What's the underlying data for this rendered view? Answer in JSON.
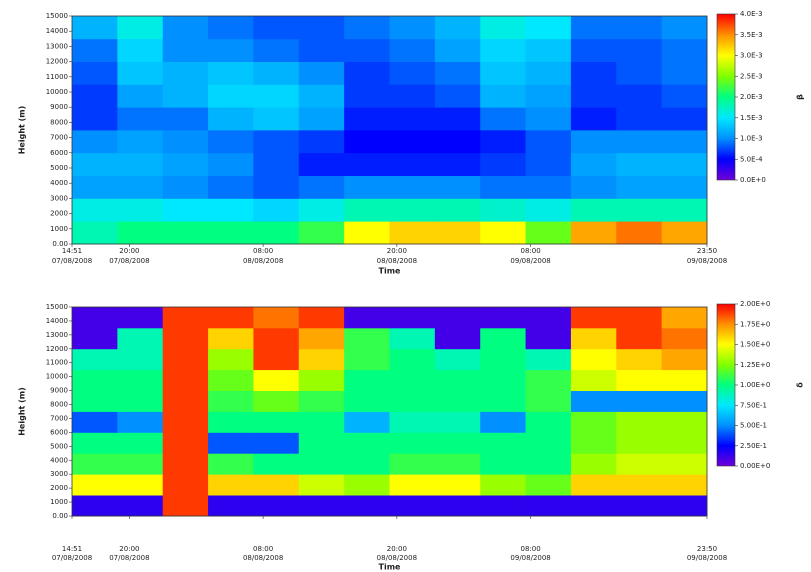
{
  "chart_data": [
    {
      "type": "heatmap",
      "ylabel": "Height (m)",
      "xlabel": "Time",
      "colorbar_label": "β",
      "x_edges": [
        14.85,
        18.92,
        22.99,
        27.06,
        31.13,
        35.2,
        39.27,
        43.34,
        47.41,
        51.48,
        55.55,
        59.62,
        63.69,
        67.76,
        71.83
      ],
      "y_edges": [
        0,
        1500,
        3000,
        4500,
        6000,
        7500,
        9000,
        10500,
        12000,
        13500,
        15000
      ],
      "values": [
        [
          0.0018,
          0.002,
          0.002,
          0.002,
          0.002,
          0.0022,
          0.003,
          0.0032,
          0.0032,
          0.003,
          0.0024,
          0.0034,
          0.0036,
          0.0034
        ],
        [
          0.0016,
          0.0016,
          0.0015,
          0.0015,
          0.0014,
          0.0016,
          0.0018,
          0.0018,
          0.0018,
          0.0017,
          0.0016,
          0.0018,
          0.0018,
          0.0018
        ],
        [
          0.0011,
          0.0011,
          0.001,
          0.0009,
          0.0008,
          0.0009,
          0.001,
          0.001,
          0.001,
          0.0009,
          0.0009,
          0.001,
          0.0011,
          0.0011
        ],
        [
          0.0012,
          0.0012,
          0.0011,
          0.001,
          0.0008,
          0.0006,
          0.0006,
          0.0006,
          0.0006,
          0.0007,
          0.0008,
          0.0011,
          0.0012,
          0.0012
        ],
        [
          0.001,
          0.0011,
          0.001,
          0.0009,
          0.0008,
          0.0007,
          0.0005,
          0.0005,
          0.0005,
          0.0006,
          0.0008,
          0.001,
          0.001,
          0.001
        ],
        [
          0.0007,
          0.0009,
          0.0009,
          0.0012,
          0.0013,
          0.0011,
          0.0006,
          0.0006,
          0.0006,
          0.0009,
          0.001,
          0.0006,
          0.0007,
          0.0007
        ],
        [
          0.0007,
          0.0011,
          0.0012,
          0.0014,
          0.0014,
          0.0012,
          0.0007,
          0.0007,
          0.0008,
          0.0012,
          0.0011,
          0.0007,
          0.0007,
          0.0008
        ],
        [
          0.0008,
          0.0013,
          0.0012,
          0.0013,
          0.0012,
          0.001,
          0.0007,
          0.0008,
          0.0009,
          0.0013,
          0.0012,
          0.0007,
          0.0008,
          0.0009
        ],
        [
          0.0009,
          0.0014,
          0.001,
          0.001,
          0.0009,
          0.0008,
          0.0008,
          0.0009,
          0.0011,
          0.0014,
          0.0013,
          0.0008,
          0.0008,
          0.0009
        ],
        [
          0.0012,
          0.0016,
          0.001,
          0.0009,
          0.0008,
          0.0008,
          0.0009,
          0.001,
          0.0012,
          0.0016,
          0.0015,
          0.0009,
          0.0009,
          0.001
        ]
      ],
      "xlim": [
        14.85,
        71.83
      ],
      "xticks": [
        {
          "value": 14.85,
          "label": "14:51"
        },
        {
          "value": 20,
          "label": "20:00"
        },
        {
          "value": 32,
          "label": "08:00"
        },
        {
          "value": 44,
          "label": "20:00"
        },
        {
          "value": 56,
          "label": "08:00"
        },
        {
          "value": 71.83,
          "label": "23:50"
        }
      ],
      "xtick_dates": [
        "07/08/2008",
        "07/08/2008",
        "08/08/2008",
        "08/08/2008",
        "09/08/2008",
        "09/08/2008"
      ],
      "ylim": [
        0,
        15000
      ],
      "yticks": [
        {
          "value": 0,
          "label": "0.00"
        },
        1000,
        2000,
        3000,
        4000,
        5000,
        6000,
        7000,
        8000,
        9000,
        10000,
        11000,
        12000,
        13000,
        14000,
        15000
      ],
      "clim": [
        0,
        0.004
      ],
      "cticks": [
        {
          "value": 0,
          "label": "0.0E+0"
        },
        {
          "value": 0.0005,
          "label": "5.0E-4"
        },
        {
          "value": 0.001,
          "label": "1.0E-3"
        },
        {
          "value": 0.0015,
          "label": "1.5E-3"
        },
        {
          "value": 0.002,
          "label": "2.0E-3"
        },
        {
          "value": 0.0025,
          "label": "2.5E-3"
        },
        {
          "value": 0.003,
          "label": "3.0E-3"
        },
        {
          "value": 0.0035,
          "label": "3.5E-3"
        },
        {
          "value": 0.004,
          "label": "4.0E-3"
        }
      ],
      "colormap": [
        "#7000d8",
        "#0000ff",
        "#0090ff",
        "#00e8ff",
        "#00ff80",
        "#80ff00",
        "#ffff00",
        "#ff9000",
        "#ff0000"
      ]
    },
    {
      "type": "heatmap",
      "ylabel": "Height (m)",
      "xlabel": "Time",
      "colorbar_label": "δ",
      "x_edges": [
        14.85,
        18.92,
        22.99,
        27.06,
        31.13,
        35.2,
        39.27,
        43.34,
        47.41,
        51.48,
        55.55,
        59.62,
        63.69,
        67.76,
        71.83
      ],
      "y_edges": [
        0,
        1500,
        3000,
        4500,
        6000,
        7500,
        9000,
        10500,
        12000,
        13500,
        15000
      ],
      "values": [
        [
          0.15,
          0.15,
          1.9,
          0.15,
          0.15,
          0.15,
          0.15,
          0.15,
          0.15,
          0.15,
          0.15,
          0.15,
          0.15,
          0.15
        ],
        [
          1.5,
          1.5,
          1.9,
          1.6,
          1.6,
          1.4,
          1.3,
          1.5,
          1.5,
          1.3,
          1.2,
          1.6,
          1.6,
          1.6
        ],
        [
          1.1,
          1.1,
          1.9,
          1.1,
          1.0,
          1.0,
          1.0,
          1.1,
          1.1,
          1.0,
          1.0,
          1.3,
          1.4,
          1.4
        ],
        [
          1.0,
          1.0,
          1.9,
          0.4,
          0.4,
          1.0,
          1.0,
          1.0,
          1.0,
          1.0,
          1.0,
          1.2,
          1.3,
          1.3
        ],
        [
          0.4,
          0.5,
          1.9,
          1.0,
          1.0,
          1.0,
          0.6,
          0.9,
          0.9,
          0.5,
          1.0,
          1.2,
          1.3,
          1.3
        ],
        [
          1.0,
          1.0,
          1.9,
          1.1,
          1.2,
          1.1,
          1.0,
          1.0,
          1.0,
          1.0,
          1.1,
          0.5,
          0.5,
          0.5
        ],
        [
          1.0,
          1.0,
          1.9,
          1.2,
          1.5,
          1.3,
          1.0,
          1.0,
          1.0,
          1.0,
          1.1,
          1.4,
          1.5,
          1.5
        ],
        [
          0.9,
          0.9,
          1.9,
          1.3,
          1.9,
          1.6,
          1.1,
          1.0,
          0.9,
          1.0,
          0.9,
          1.5,
          1.6,
          1.7
        ],
        [
          0.1,
          0.9,
          1.9,
          1.6,
          1.9,
          1.7,
          1.1,
          0.9,
          0.1,
          1.0,
          0.1,
          1.6,
          1.9,
          1.8
        ],
        [
          0.1,
          0.1,
          1.9,
          1.9,
          1.8,
          1.9,
          0.1,
          0.1,
          0.1,
          0.1,
          0.1,
          1.9,
          1.9,
          1.7
        ]
      ],
      "xlim": [
        14.85,
        71.83
      ],
      "xticks": [
        {
          "value": 14.85,
          "label": "14:51"
        },
        {
          "value": 20,
          "label": "20:00"
        },
        {
          "value": 32,
          "label": "08:00"
        },
        {
          "value": 44,
          "label": "20:00"
        },
        {
          "value": 56,
          "label": "08:00"
        },
        {
          "value": 71.83,
          "label": "23:50"
        }
      ],
      "xtick_dates": [
        "07/08/2008",
        "07/08/2008",
        "08/08/2008",
        "08/08/2008",
        "09/08/2008",
        "09/08/2008"
      ],
      "ylim": [
        0,
        15000
      ],
      "yticks": [
        {
          "value": 0,
          "label": "0.00"
        },
        1000,
        2000,
        3000,
        4000,
        5000,
        6000,
        7000,
        8000,
        9000,
        10000,
        11000,
        12000,
        13000,
        14000,
        15000
      ],
      "clim": [
        0,
        2
      ],
      "cticks": [
        {
          "value": 0,
          "label": "0.00E+0"
        },
        {
          "value": 0.25,
          "label": "2.50E-1"
        },
        {
          "value": 0.5,
          "label": "5.00E-1"
        },
        {
          "value": 0.75,
          "label": "7.50E-1"
        },
        {
          "value": 1,
          "label": "1.00E+0"
        },
        {
          "value": 1.25,
          "label": "1.25E+0"
        },
        {
          "value": 1.5,
          "label": "1.50E+0"
        },
        {
          "value": 1.75,
          "label": "1.75E+0"
        },
        {
          "value": 2,
          "label": "2.00E+0"
        }
      ],
      "colormap": [
        "#7000d8",
        "#0000ff",
        "#0090ff",
        "#00e8ff",
        "#00ff80",
        "#80ff00",
        "#ffff00",
        "#ff9000",
        "#ff0000"
      ]
    }
  ]
}
